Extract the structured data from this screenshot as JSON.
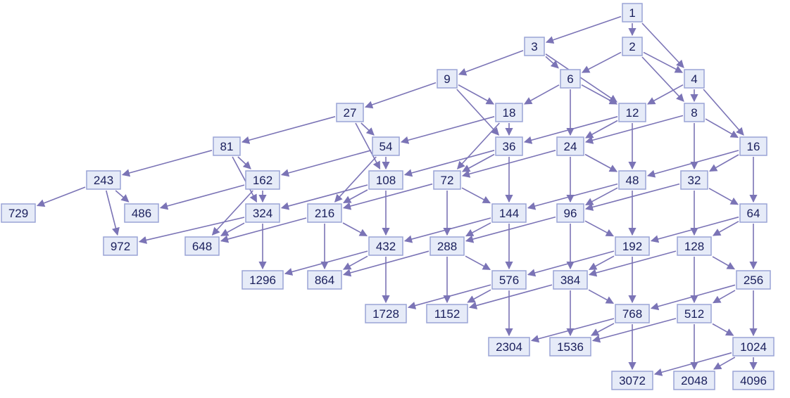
{
  "diagram": {
    "colors": {
      "node_fill": "#e6ebf8",
      "node_border": "#9aa4d6",
      "edge": "#7b74b6",
      "text": "#1a1f5c"
    },
    "nodes": [
      "1",
      "2",
      "3",
      "4",
      "6",
      "8",
      "9",
      "12",
      "16",
      "18",
      "24",
      "27",
      "32",
      "36",
      "48",
      "54",
      "64",
      "72",
      "81",
      "96",
      "108",
      "128",
      "144",
      "162",
      "192",
      "216",
      "243",
      "256",
      "288",
      "324",
      "384",
      "432",
      "486",
      "512",
      "576",
      "648",
      "729",
      "768",
      "864",
      "972",
      "1024",
      "1152",
      "1296",
      "1536",
      "1728",
      "2048",
      "2304",
      "3072",
      "4096"
    ],
    "edges": [
      [
        "1",
        "2"
      ],
      [
        "1",
        "3"
      ],
      [
        "1",
        "4"
      ],
      [
        "2",
        "4"
      ],
      [
        "2",
        "6"
      ],
      [
        "2",
        "8"
      ],
      [
        "3",
        "6"
      ],
      [
        "3",
        "9"
      ],
      [
        "3",
        "12"
      ],
      [
        "4",
        "8"
      ],
      [
        "4",
        "12"
      ],
      [
        "4",
        "16"
      ],
      [
        "6",
        "12"
      ],
      [
        "6",
        "18"
      ],
      [
        "6",
        "24"
      ],
      [
        "8",
        "16"
      ],
      [
        "8",
        "24"
      ],
      [
        "8",
        "32"
      ],
      [
        "9",
        "18"
      ],
      [
        "9",
        "27"
      ],
      [
        "9",
        "36"
      ],
      [
        "12",
        "24"
      ],
      [
        "12",
        "36"
      ],
      [
        "12",
        "48"
      ],
      [
        "16",
        "32"
      ],
      [
        "16",
        "48"
      ],
      [
        "16",
        "64"
      ],
      [
        "18",
        "36"
      ],
      [
        "18",
        "54"
      ],
      [
        "18",
        "72"
      ],
      [
        "24",
        "48"
      ],
      [
        "24",
        "72"
      ],
      [
        "24",
        "96"
      ],
      [
        "27",
        "54"
      ],
      [
        "27",
        "81"
      ],
      [
        "27",
        "108"
      ],
      [
        "32",
        "64"
      ],
      [
        "32",
        "96"
      ],
      [
        "32",
        "128"
      ],
      [
        "36",
        "72"
      ],
      [
        "36",
        "108"
      ],
      [
        "36",
        "144"
      ],
      [
        "48",
        "96"
      ],
      [
        "48",
        "144"
      ],
      [
        "48",
        "192"
      ],
      [
        "54",
        "108"
      ],
      [
        "54",
        "162"
      ],
      [
        "54",
        "216"
      ],
      [
        "64",
        "128"
      ],
      [
        "64",
        "192"
      ],
      [
        "64",
        "256"
      ],
      [
        "72",
        "144"
      ],
      [
        "72",
        "216"
      ],
      [
        "72",
        "288"
      ],
      [
        "81",
        "162"
      ],
      [
        "81",
        "243"
      ],
      [
        "81",
        "324"
      ],
      [
        "96",
        "192"
      ],
      [
        "96",
        "288"
      ],
      [
        "96",
        "384"
      ],
      [
        "108",
        "216"
      ],
      [
        "108",
        "324"
      ],
      [
        "108",
        "432"
      ],
      [
        "128",
        "256"
      ],
      [
        "128",
        "384"
      ],
      [
        "128",
        "512"
      ],
      [
        "144",
        "288"
      ],
      [
        "144",
        "432"
      ],
      [
        "144",
        "576"
      ],
      [
        "162",
        "324"
      ],
      [
        "162",
        "486"
      ],
      [
        "162",
        "648"
      ],
      [
        "192",
        "384"
      ],
      [
        "192",
        "576"
      ],
      [
        "192",
        "768"
      ],
      [
        "216",
        "432"
      ],
      [
        "216",
        "648"
      ],
      [
        "216",
        "864"
      ],
      [
        "243",
        "486"
      ],
      [
        "243",
        "729"
      ],
      [
        "243",
        "972"
      ],
      [
        "256",
        "512"
      ],
      [
        "256",
        "768"
      ],
      [
        "256",
        "1024"
      ],
      [
        "288",
        "576"
      ],
      [
        "288",
        "864"
      ],
      [
        "288",
        "1152"
      ],
      [
        "324",
        "648"
      ],
      [
        "324",
        "972"
      ],
      [
        "324",
        "1296"
      ],
      [
        "384",
        "768"
      ],
      [
        "384",
        "1152"
      ],
      [
        "384",
        "1536"
      ],
      [
        "432",
        "864"
      ],
      [
        "432",
        "1296"
      ],
      [
        "432",
        "1728"
      ],
      [
        "512",
        "1024"
      ],
      [
        "512",
        "1536"
      ],
      [
        "512",
        "2048"
      ],
      [
        "576",
        "1152"
      ],
      [
        "576",
        "1728"
      ],
      [
        "576",
        "2304"
      ],
      [
        "768",
        "1536"
      ],
      [
        "768",
        "2304"
      ],
      [
        "768",
        "3072"
      ],
      [
        "1024",
        "2048"
      ],
      [
        "1024",
        "3072"
      ],
      [
        "1024",
        "4096"
      ]
    ]
  }
}
